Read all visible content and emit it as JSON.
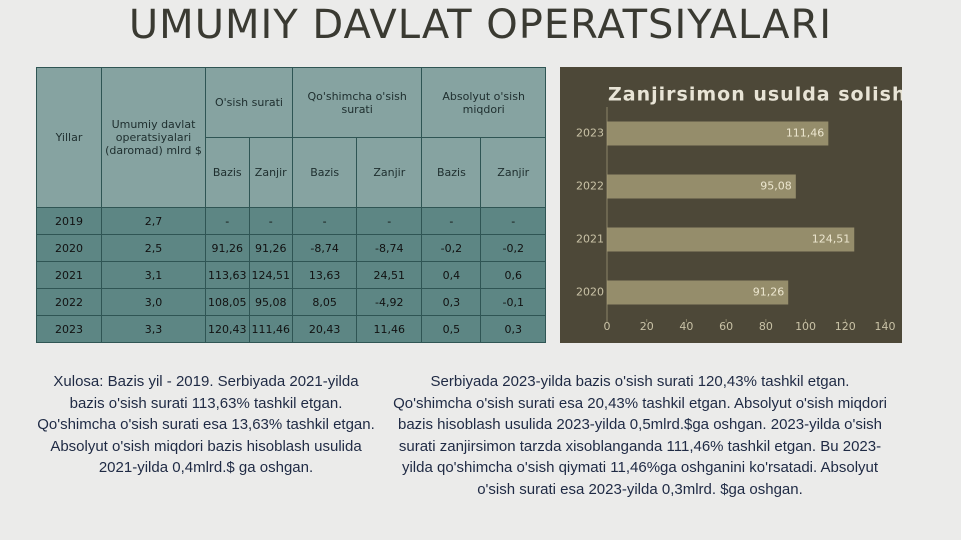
{
  "title": "UMUMIY DAVLAT OPERATSIYALARI",
  "table": {
    "header_row1": [
      "Yillar",
      "Umumiy davlat operatsiyalari (daromad) mlrd $",
      "O'sish surati",
      "Qo'shimcha o'sish surati",
      "Absolyut o'sish miqdori"
    ],
    "header_row2": [
      "Bazis",
      "Zanjir",
      "Bazis",
      "Zanjir",
      "Bazis",
      "Zanjir"
    ],
    "rows": [
      [
        "2019",
        "2,7",
        "-",
        "-",
        "-",
        "-",
        "-",
        "-"
      ],
      [
        "2020",
        "2,5",
        "91,26",
        "91,26",
        "-8,74",
        "-8,74",
        "-0,2",
        "-0,2"
      ],
      [
        "2021",
        "3,1",
        "113,63",
        "124,51",
        "13,63",
        "24,51",
        "0,4",
        "0,6"
      ],
      [
        "2022",
        "3,0",
        "108,05",
        "95,08",
        "8,05",
        "-4,92",
        "0,3",
        "-0,1"
      ],
      [
        "2023",
        "3,3",
        "120,43",
        "111,46",
        "20,43",
        "11,46",
        "0,5",
        "0,3"
      ]
    ]
  },
  "chart_data": {
    "type": "bar",
    "orientation": "horizontal",
    "title": "Zanjirsimon usulda solishtiruv",
    "categories": [
      "2023",
      "2022",
      "2021",
      "2020"
    ],
    "values": [
      111.46,
      95.08,
      124.51,
      91.26
    ],
    "value_labels": [
      "111,46",
      "95,08",
      "124,51",
      "91,26"
    ],
    "color": "#a89f78",
    "xlim": [
      0,
      140
    ],
    "xticks": [
      0,
      20,
      40,
      60,
      80,
      100,
      120,
      140
    ]
  },
  "paragraphs": [
    "Xulosa: Bazis yil - 2019. Serbiyada 2021-yilda bazis o'sish surati 113,63% tashkil etgan. Qo'shimcha o'sish surati esa 13,63% tashkil etgan. Absolyut o'sish miqdori bazis hisoblash usulida 2021-yilda 0,4mlrd.$ ga oshgan.",
    "Serbiyada 2023-yilda bazis o'sish surati 120,43% tashkil etgan. Qo'shimcha o'sish surati esa 20,43% tashkil etgan. Absolyut o'sish miqdori bazis hisoblash usulida 2023-yilda 0,5mlrd.$ga oshgan. 2023-yilda o'sish surati zanjirsimon tarzda xisoblanganda 111,46% tashkil etgan. Bu 2023-yilda qo'shimcha o'sish qiymati 11,46%ga oshganini ko'rsatadi. Absolyut o'sish surati esa 2023-yilda 0,3mlrd. $ga oshgan."
  ]
}
